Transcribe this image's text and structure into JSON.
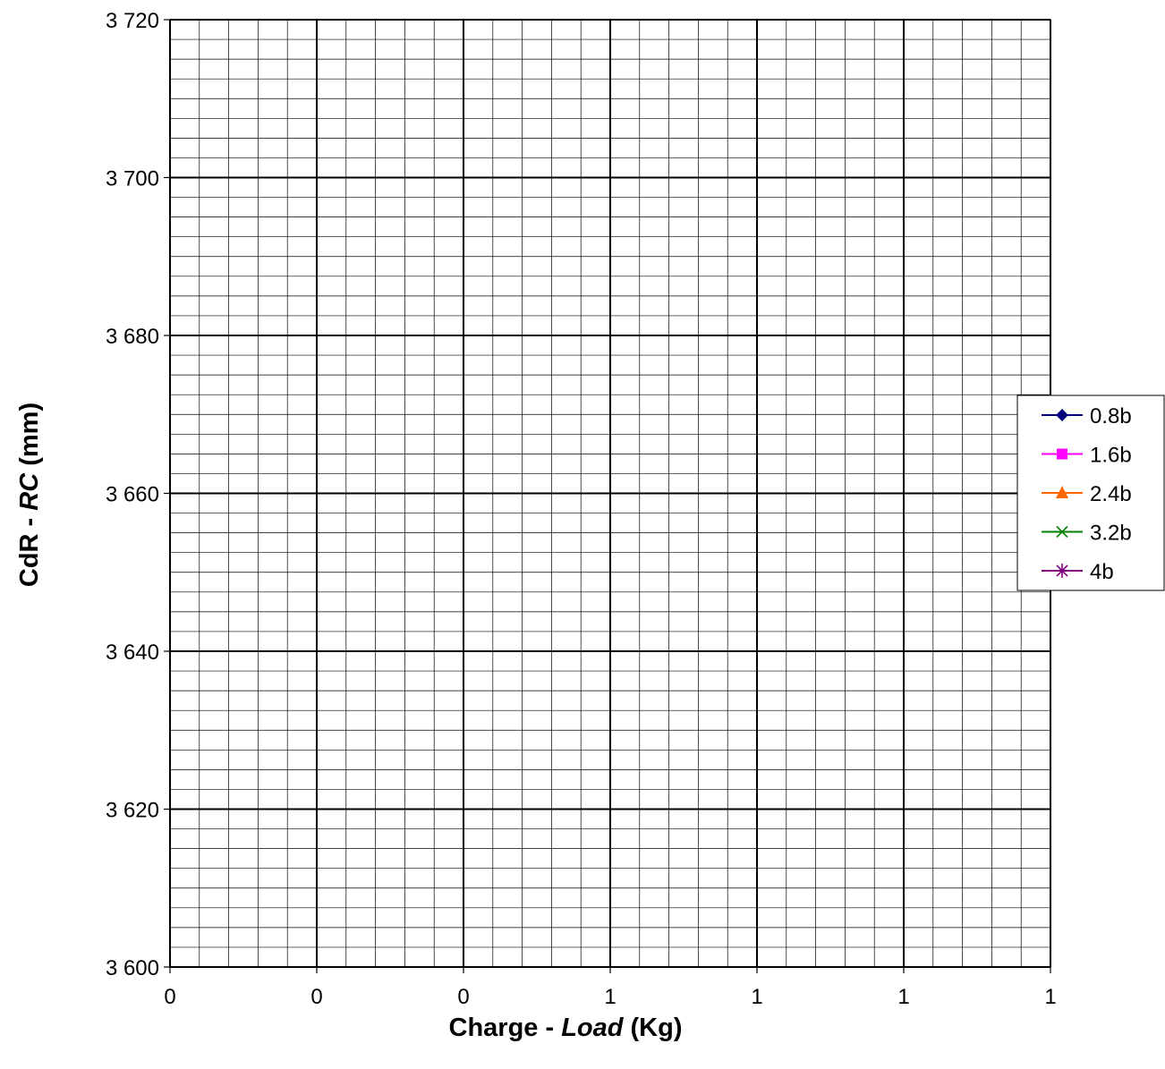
{
  "chart_data": {
    "type": "line",
    "title": "",
    "xlabel": {
      "part1": "Charge - ",
      "part2": "Load",
      "part3": " (Kg)"
    },
    "ylabel": {
      "part1": "CdR - ",
      "part2": "RC",
      "part3": " (mm)"
    },
    "ylim": [
      3600,
      3720
    ],
    "y_major_step": 20,
    "y_minor_step": 2.5,
    "y_ticks": [
      "3 600",
      "3 620",
      "3 640",
      "3 660",
      "3 680",
      "3 700",
      "3 720"
    ],
    "x_ticks": [
      "0",
      "0",
      "0",
      "1",
      "1",
      "1",
      "1"
    ],
    "x_minor_per_major": 5,
    "grid": true,
    "legend_position": "right",
    "series": [
      {
        "name": "0.8b",
        "color": "#000080",
        "marker": "diamond",
        "values": []
      },
      {
        "name": "1.6b",
        "color": "#FF00FF",
        "marker": "square",
        "values": []
      },
      {
        "name": "2.4b",
        "color": "#FF6600",
        "marker": "triangle",
        "values": []
      },
      {
        "name": "3.2b",
        "color": "#008000",
        "marker": "x",
        "values": []
      },
      {
        "name": "4b",
        "color": "#800080",
        "marker": "star",
        "values": []
      }
    ]
  }
}
